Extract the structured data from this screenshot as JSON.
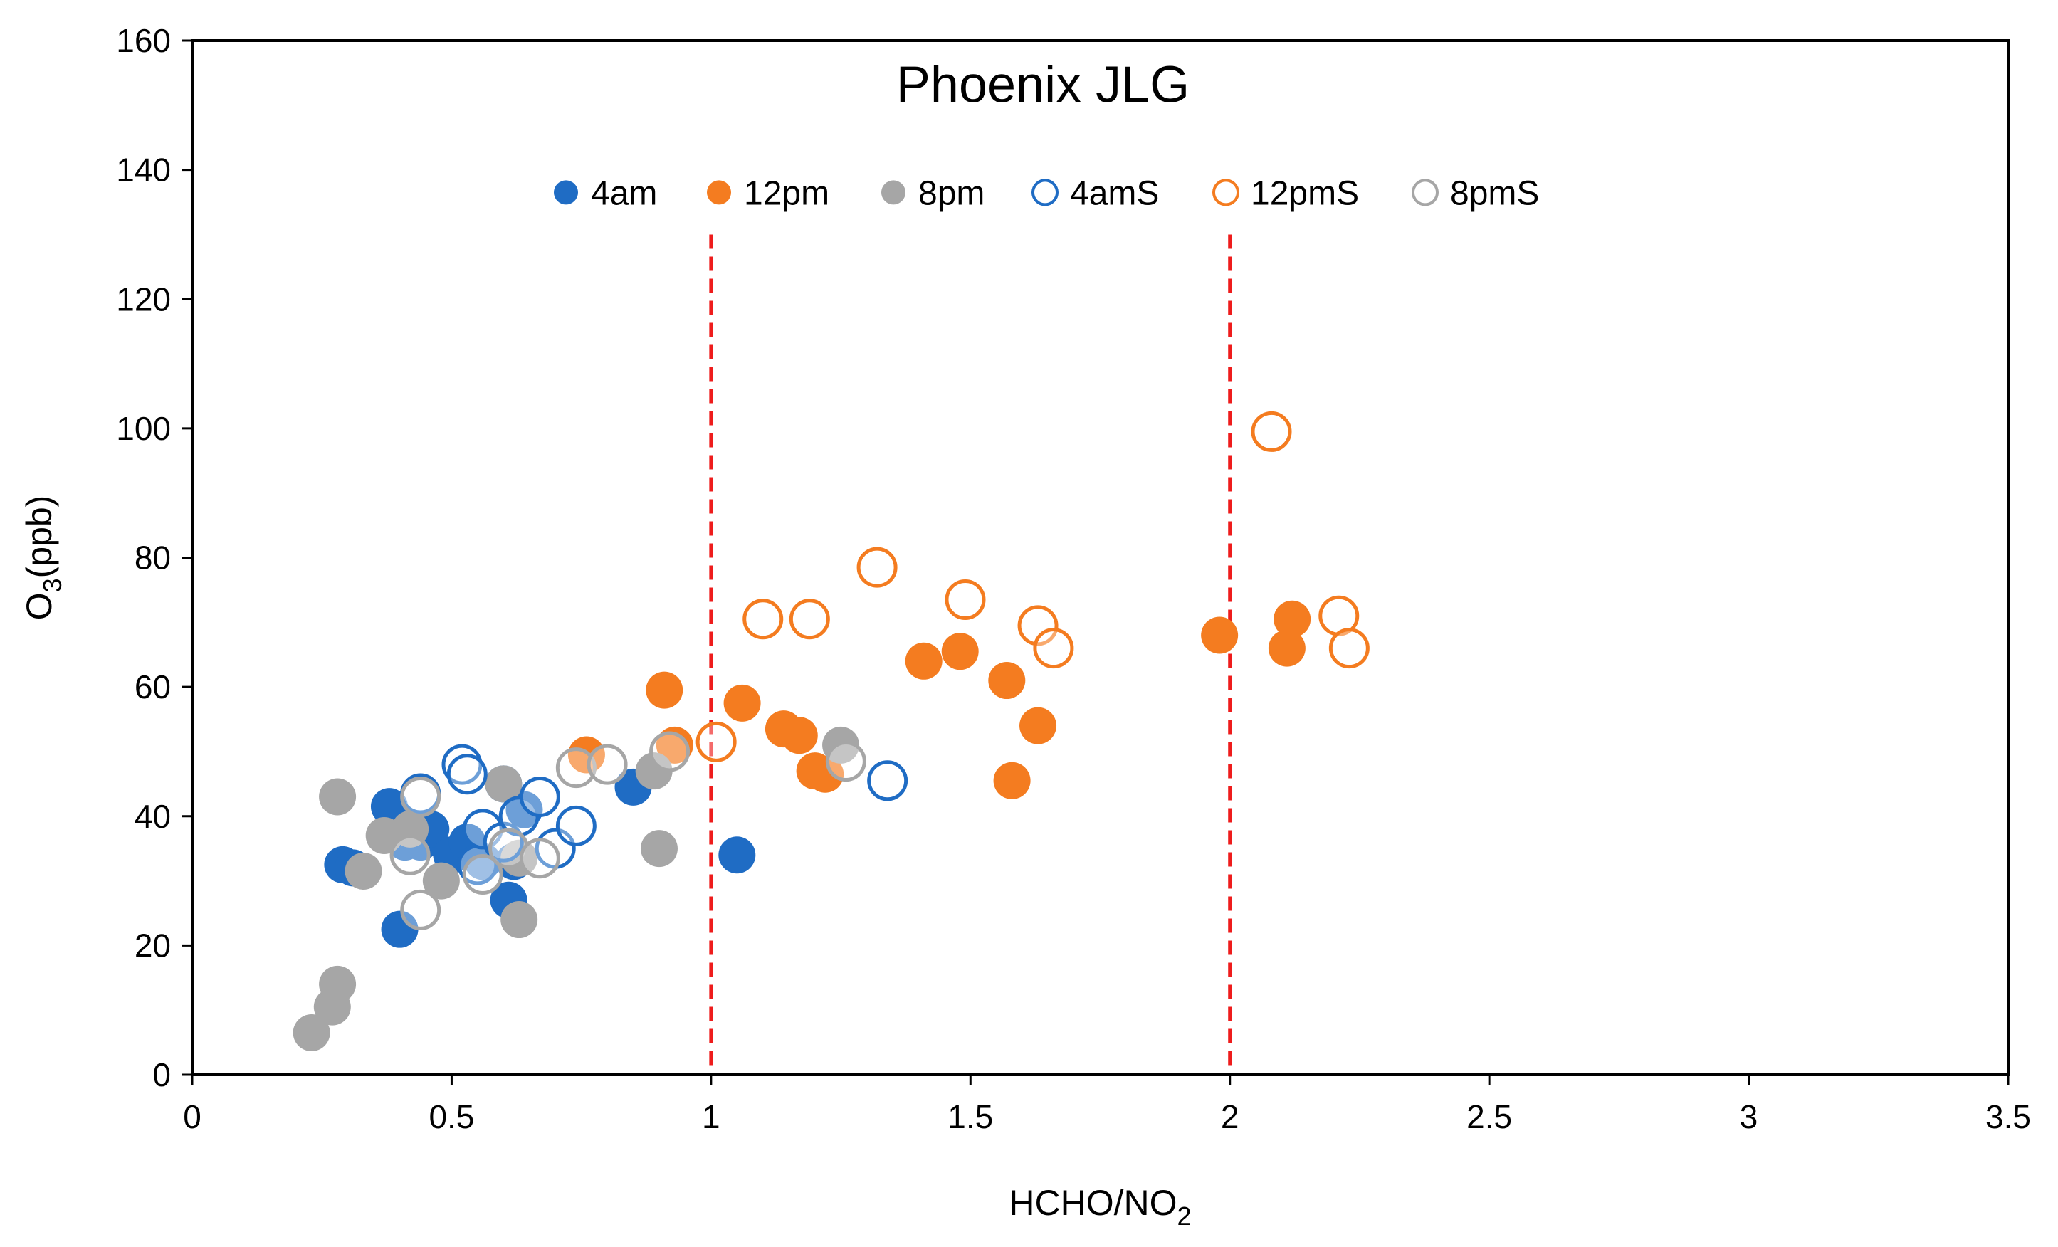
{
  "chart_data": {
    "type": "scatter",
    "title": "Phoenix JLG",
    "xlabel": {
      "main": "HCHO/NO",
      "sub": "2"
    },
    "ylabel": {
      "main": "O",
      "sub": "3",
      "unit": "(ppb)"
    },
    "xlim": [
      0,
      3.5
    ],
    "ylim": [
      0,
      160
    ],
    "xticks": [
      0,
      0.5,
      1,
      1.5,
      2,
      2.5,
      3,
      3.5
    ],
    "xtick_labels": [
      "0",
      "0.5",
      "1",
      "1.5",
      "2",
      "2.5",
      "3",
      "3.5"
    ],
    "yticks": [
      0,
      20,
      40,
      60,
      80,
      100,
      120,
      140,
      160
    ],
    "ytick_labels": [
      "0",
      "20",
      "40",
      "60",
      "80",
      "100",
      "120",
      "140",
      "160"
    ],
    "grid": false,
    "legend_position": "top-center",
    "reference_lines": [
      {
        "x": 1,
        "color": "#ee1c1c",
        "style": "dashed"
      },
      {
        "x": 2,
        "color": "#ee1c1c",
        "style": "dashed"
      }
    ],
    "series": [
      {
        "name": "4am",
        "color": "#1f6cc4",
        "filled": true,
        "points": [
          [
            0.29,
            32.5
          ],
          [
            0.31,
            32
          ],
          [
            0.38,
            41.5
          ],
          [
            0.4,
            22.5
          ],
          [
            0.41,
            36
          ],
          [
            0.44,
            36
          ],
          [
            0.46,
            38
          ],
          [
            0.5,
            34
          ],
          [
            0.53,
            36
          ],
          [
            0.56,
            33
          ],
          [
            0.6,
            45
          ],
          [
            0.61,
            27
          ],
          [
            0.62,
            33
          ],
          [
            0.64,
            41
          ],
          [
            0.85,
            44.5
          ],
          [
            1.05,
            34
          ]
        ]
      },
      {
        "name": "12pm",
        "color": "#f47c20",
        "filled": true,
        "points": [
          [
            0.76,
            49.5
          ],
          [
            0.91,
            59.5
          ],
          [
            0.93,
            51
          ],
          [
            1.06,
            57.5
          ],
          [
            1.14,
            53.5
          ],
          [
            1.17,
            52.5
          ],
          [
            1.2,
            47
          ],
          [
            1.22,
            46.5
          ],
          [
            1.41,
            64
          ],
          [
            1.48,
            65.5
          ],
          [
            1.57,
            61
          ],
          [
            1.58,
            45.5
          ],
          [
            1.63,
            54
          ],
          [
            1.98,
            68
          ],
          [
            2.11,
            66
          ],
          [
            2.12,
            70.5
          ]
        ]
      },
      {
        "name": "8pm",
        "color": "#a6a6a6",
        "filled": true,
        "points": [
          [
            0.23,
            6.5
          ],
          [
            0.27,
            10.5
          ],
          [
            0.28,
            14
          ],
          [
            0.28,
            43
          ],
          [
            0.33,
            31.5
          ],
          [
            0.37,
            37
          ],
          [
            0.42,
            38
          ],
          [
            0.48,
            30
          ],
          [
            0.6,
            45
          ],
          [
            0.63,
            24
          ],
          [
            0.63,
            33.5
          ],
          [
            0.89,
            47
          ],
          [
            0.9,
            35
          ],
          [
            1.25,
            51
          ]
        ]
      },
      {
        "name": "4amS",
        "color": "#1f6cc4",
        "filled": false,
        "points": [
          [
            0.44,
            43.5
          ],
          [
            0.52,
            48
          ],
          [
            0.53,
            46.5
          ],
          [
            0.55,
            32.5
          ],
          [
            0.56,
            38
          ],
          [
            0.6,
            36
          ],
          [
            0.63,
            40
          ],
          [
            0.67,
            43
          ],
          [
            0.7,
            35
          ],
          [
            0.74,
            38.5
          ],
          [
            1.34,
            45.5
          ]
        ]
      },
      {
        "name": "12pmS",
        "color": "#f47c20",
        "filled": false,
        "points": [
          [
            1.01,
            51.5
          ],
          [
            1.1,
            70.5
          ],
          [
            1.19,
            70.5
          ],
          [
            1.32,
            78.5
          ],
          [
            1.49,
            73.5
          ],
          [
            1.63,
            69.5
          ],
          [
            1.66,
            66
          ],
          [
            2.08,
            99.5
          ],
          [
            2.21,
            71
          ],
          [
            2.23,
            66
          ]
        ]
      },
      {
        "name": "8pmS",
        "color": "#a6a6a6",
        "filled": false,
        "points": [
          [
            0.42,
            34
          ],
          [
            0.44,
            25.5
          ],
          [
            0.44,
            43
          ],
          [
            0.56,
            31
          ],
          [
            0.61,
            35
          ],
          [
            0.67,
            33.5
          ],
          [
            0.74,
            47.5
          ],
          [
            0.8,
            48
          ],
          [
            0.92,
            50
          ],
          [
            1.26,
            48.5
          ]
        ]
      }
    ]
  }
}
